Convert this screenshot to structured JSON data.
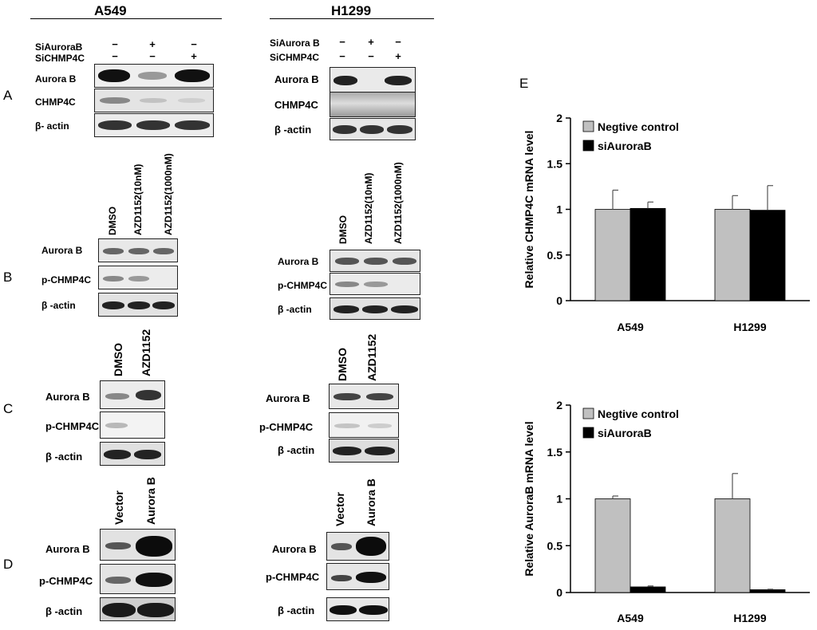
{
  "headers": {
    "left": "A549",
    "right": "H1299"
  },
  "panel_letters": {
    "a": "A",
    "b": "B",
    "c": "C",
    "d": "D",
    "e": "E"
  },
  "panelA": {
    "left": {
      "row1": "SiAuroraB",
      "row2": "SiCHMP4C",
      "signs1": [
        "−",
        "+",
        "−"
      ],
      "signs2": [
        "−",
        "−",
        "+"
      ],
      "blots": [
        "Aurora B",
        "CHMP4C",
        "β- actin"
      ]
    },
    "right": {
      "row1": "SiAurora B",
      "row2": "SiCHMP4C",
      "signs1": [
        "−",
        "+",
        "−"
      ],
      "signs2": [
        "−",
        "−",
        "+"
      ],
      "blots": [
        "Aurora B",
        "CHMP4C",
        "β -actin"
      ]
    }
  },
  "panelB": {
    "lanes": [
      "DMSO",
      "AZD1152(10nM)",
      "AZD1152(1000nM)"
    ],
    "blots": [
      "Aurora B",
      "p-CHMP4C",
      "β -actin"
    ]
  },
  "panelC": {
    "lanes": [
      "DMSO",
      "AZD1152"
    ],
    "blots": [
      "Aurora B",
      "p-CHMP4C",
      "β -actin"
    ]
  },
  "panelD": {
    "lanes": [
      "Vector",
      "Aurora B"
    ],
    "blots": [
      "Aurora B",
      "p-CHMP4C",
      "β -actin"
    ]
  },
  "chart_data": [
    {
      "type": "bar",
      "categories": [
        "A549",
        "H1299"
      ],
      "series": [
        {
          "name": "Negtive control",
          "values": [
            1.0,
            1.0
          ],
          "errors": [
            0.21,
            0.15
          ],
          "color": "#c0c0c0"
        },
        {
          "name": "siAuroraB",
          "values": [
            1.01,
            0.99
          ],
          "errors": [
            0.07,
            0.27
          ],
          "color": "#000000"
        }
      ],
      "ylabel": "Relative CHMP4C mRNA level",
      "ylim": [
        0,
        2
      ],
      "yticks": [
        "0",
        "0.5",
        "1",
        "1.5",
        "2"
      ],
      "legend": "top-left"
    },
    {
      "type": "bar",
      "categories": [
        "A549",
        "H1299"
      ],
      "series": [
        {
          "name": "Negtive control",
          "values": [
            1.0,
            1.0
          ],
          "errors": [
            0.03,
            0.27
          ],
          "color": "#c0c0c0"
        },
        {
          "name": "siAuroraB",
          "values": [
            0.06,
            0.03
          ],
          "errors": [
            0.01,
            0.005
          ],
          "color": "#000000"
        }
      ],
      "ylabel": "Relative AuroraB mRNA level",
      "ylim": [
        0,
        2
      ],
      "yticks": [
        "0",
        "0.5",
        "1",
        "1.5",
        "2"
      ],
      "legend": "top-left"
    }
  ]
}
